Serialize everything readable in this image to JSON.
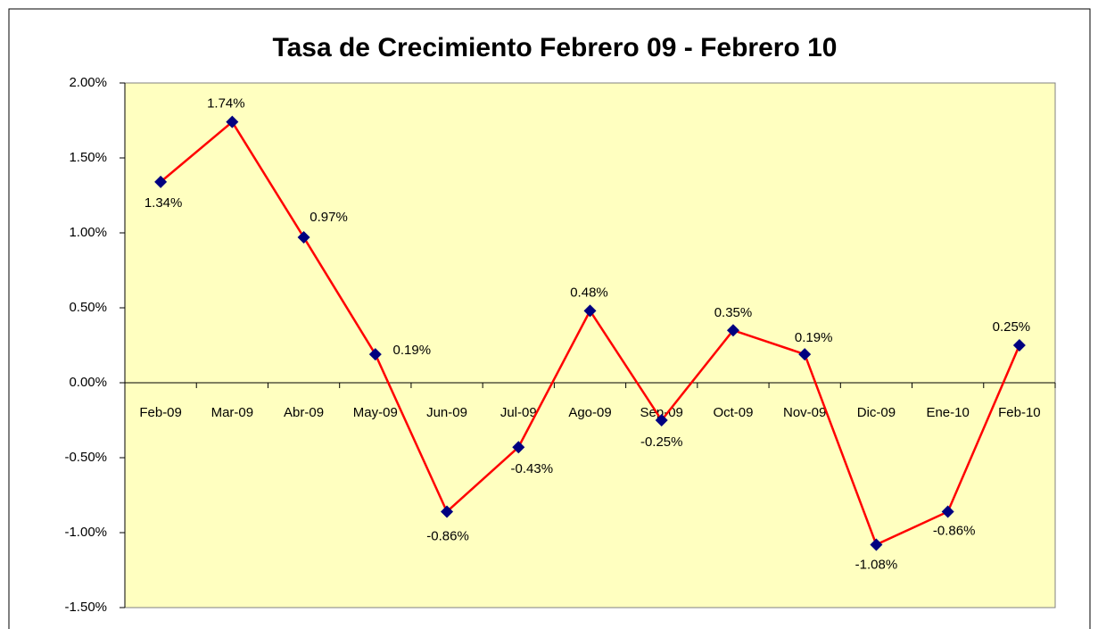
{
  "chart_data": {
    "type": "line",
    "title": "Tasa de Crecimiento  Febrero 09 - Febrero 10",
    "categories": [
      "Feb-09",
      "Mar-09",
      "Abr-09",
      "May-09",
      "Jun-09",
      "Jul-09",
      "Ago-09",
      "Sep-09",
      "Oct-09",
      "Nov-09",
      "Dic-09",
      "Ene-10",
      "Feb-10"
    ],
    "series": [
      {
        "color": "#ff0000",
        "marker_color": "#000080",
        "values": [
          1.34,
          1.74,
          0.97,
          0.19,
          -0.86,
          -0.43,
          0.48,
          -0.25,
          0.35,
          0.19,
          -1.08,
          -0.86,
          0.25
        ],
        "value_labels": [
          "1.34%",
          "1.74%",
          "0.97%",
          "0.19%",
          "-0.86%",
          "-0.43%",
          "0.48%",
          "-0.25%",
          "0.35%",
          "0.19%",
          "-1.08%",
          "-0.86%",
          "0.25%"
        ]
      }
    ],
    "ylim": [
      -1.5,
      2
    ],
    "yticks": [
      {
        "value": -1.5,
        "label": "-1.50%"
      },
      {
        "value": -1,
        "label": "-1.00%"
      },
      {
        "value": -0.5,
        "label": "-0.50%"
      },
      {
        "value": 0,
        "label": "0.00%"
      },
      {
        "value": 0.5,
        "label": "0.50%"
      },
      {
        "value": 1,
        "label": "1.00%"
      },
      {
        "value": 1.5,
        "label": "1.50%"
      },
      {
        "value": 2,
        "label": "2.00%"
      }
    ],
    "plot_background": "#ffffc0"
  }
}
